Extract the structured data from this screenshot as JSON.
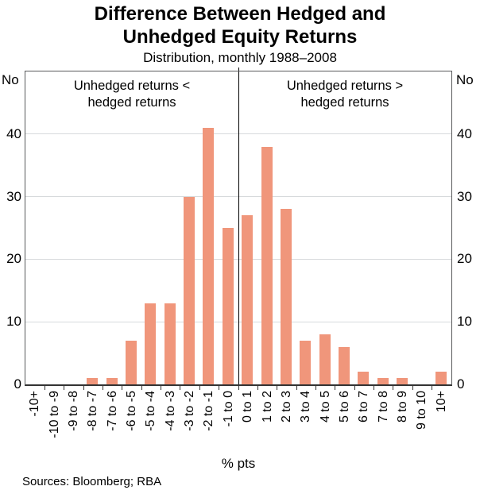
{
  "chart_data": {
    "type": "bar",
    "title_line1": "Difference Between Hedged and",
    "title_line2": "Unhedged Equity Returns",
    "subtitle": "Distribution, monthly 1988–2008",
    "categories": [
      "-10+",
      "-10 to -9",
      "-9 to -8",
      "-8 to -7",
      "-7 to -6",
      "-6 to -5",
      "-5 to -4",
      "-4 to -3",
      "-3 to -2",
      "-2 to -1",
      "-1 to 0",
      "0 to 1",
      "1 to 2",
      "2 to 3",
      "3 to 4",
      "4 to 5",
      "5 to 6",
      "6 to 7",
      "7 to 8",
      "8 to 9",
      "9 to 10",
      "10+"
    ],
    "values": [
      0,
      0,
      0,
      1,
      1,
      7,
      13,
      13,
      30,
      41,
      25,
      27,
      38,
      28,
      7,
      8,
      6,
      2,
      1,
      1,
      0,
      2
    ],
    "xlabel": "% pts",
    "ylabel_left": "No",
    "ylabel_right": "No",
    "ylim": [
      0,
      50
    ],
    "yticks": [
      0,
      10,
      20,
      30,
      40
    ],
    "grid": true,
    "legend": false,
    "divider_after_index": 10,
    "annotations": {
      "left": {
        "line1": "Unhedged returns <",
        "line2": "hedged returns"
      },
      "right": {
        "line1": "Unhedged returns >",
        "line2": "hedged returns"
      }
    }
  },
  "footer": {
    "sources": "Sources: Bloomberg; RBA"
  },
  "colors": {
    "bar": "#F0967B",
    "gridline": "#D7DADC",
    "axis_box": "#58595B",
    "baseline": "#333333",
    "divider": "#000000",
    "text": "#000000"
  }
}
